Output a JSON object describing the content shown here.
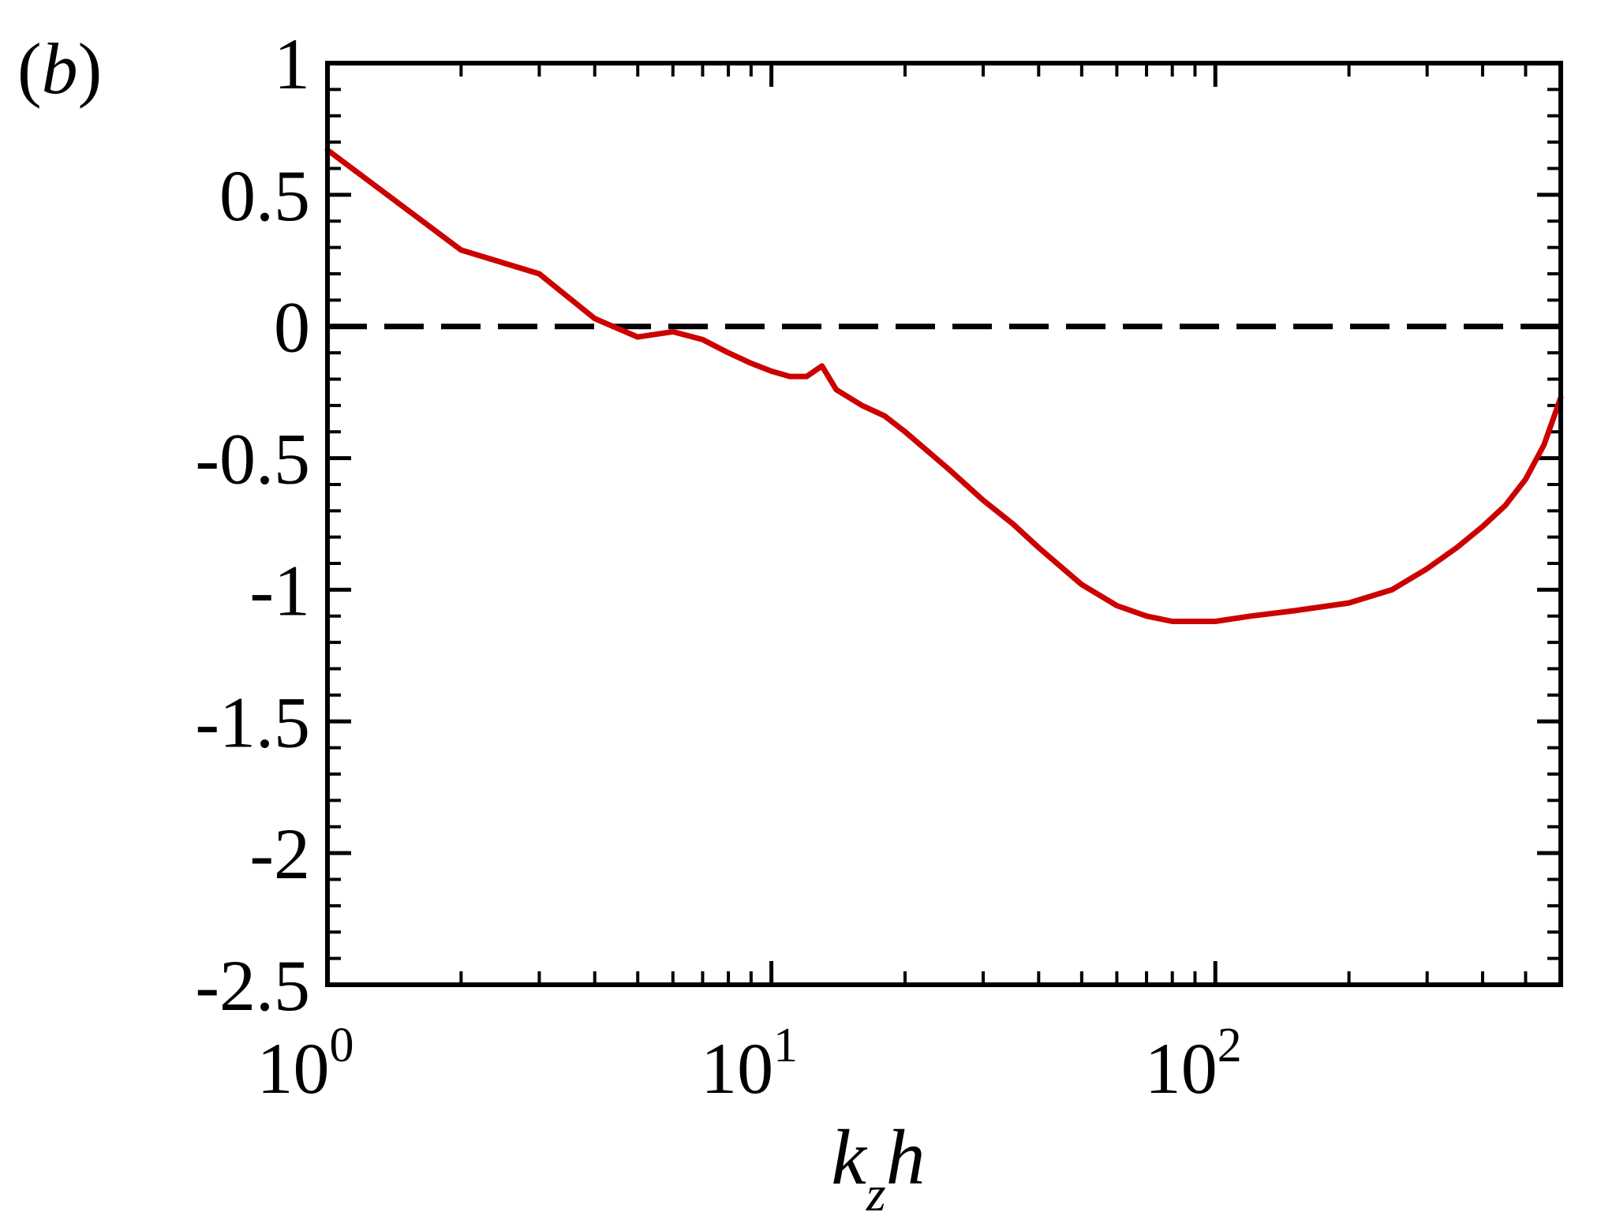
{
  "panel_label": {
    "open": "(",
    "letter": "b",
    "close": ")"
  },
  "chart_data": {
    "type": "line",
    "title": "",
    "xlabel": {
      "main": "k",
      "subscript": "z",
      "tail": "h"
    },
    "ylabel": "",
    "xscale": "log",
    "xlim": [
      1,
      600
    ],
    "ylim": [
      -2.5,
      1
    ],
    "grid": false,
    "legend": "none",
    "x_tick_labels": [
      {
        "value": 1,
        "base": "10",
        "exp": "0"
      },
      {
        "value": 10,
        "base": "10",
        "exp": "1"
      },
      {
        "value": 100,
        "base": "10",
        "exp": "2"
      }
    ],
    "y_ticks": [
      {
        "value": 1,
        "label": "1"
      },
      {
        "value": 0.5,
        "label": "0.5"
      },
      {
        "value": 0,
        "label": "0"
      },
      {
        "value": -0.5,
        "label": "-0.5"
      },
      {
        "value": -1,
        "label": "-1"
      },
      {
        "value": -1.5,
        "label": "-1.5"
      },
      {
        "value": -2,
        "label": "-2"
      },
      {
        "value": -2.5,
        "label": "-2.5"
      }
    ],
    "reference_line": {
      "y": 0,
      "style": "dashed",
      "color": "#000000"
    },
    "series": [
      {
        "color": "#cc0000",
        "x": [
          1,
          2,
          3,
          4,
          5,
          6,
          7,
          8,
          9,
          10,
          11,
          12,
          13,
          14,
          16,
          18,
          20,
          25,
          30,
          35,
          40,
          50,
          60,
          70,
          80,
          90,
          100,
          120,
          150,
          200,
          250,
          300,
          350,
          400,
          450,
          500,
          550,
          600
        ],
        "y": [
          0.67,
          0.29,
          0.2,
          0.03,
          -0.04,
          -0.02,
          -0.05,
          -0.1,
          -0.14,
          -0.17,
          -0.19,
          -0.19,
          -0.15,
          -0.24,
          -0.3,
          -0.34,
          -0.4,
          -0.54,
          -0.66,
          -0.75,
          -0.84,
          -0.98,
          -1.06,
          -1.1,
          -1.12,
          -1.12,
          -1.12,
          -1.1,
          -1.08,
          -1.05,
          -1.0,
          -0.92,
          -0.84,
          -0.76,
          -0.68,
          -0.58,
          -0.45,
          -0.27
        ]
      }
    ]
  }
}
